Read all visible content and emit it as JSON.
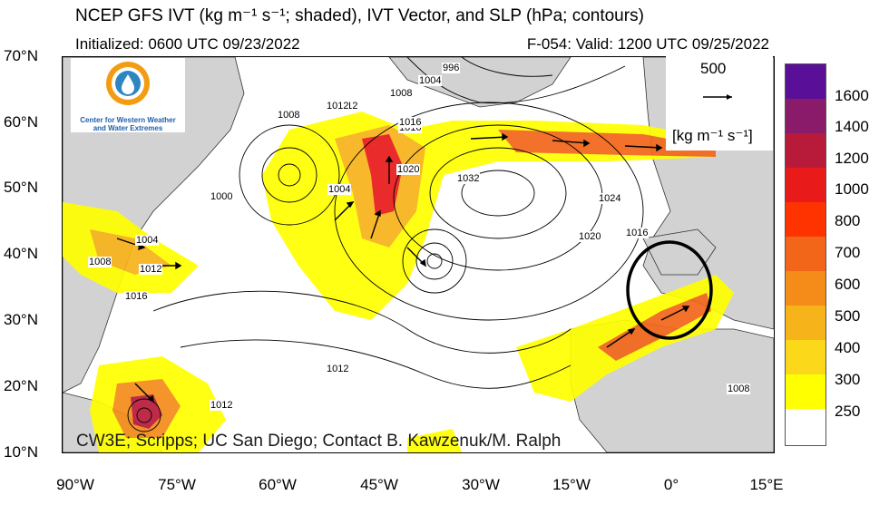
{
  "header": {
    "title": "NCEP GFS IVT (kg m⁻¹ s⁻¹; shaded), IVT Vector, and SLP (hPa; contours)",
    "initialized": "Initialized: 0600 UTC 09/23/2022",
    "valid": "F-054: Valid: 1200 UTC 09/25/2022"
  },
  "axes": {
    "lat_labels": [
      "70°N",
      "60°N",
      "50°N",
      "40°N",
      "30°N",
      "20°N",
      "10°N"
    ],
    "lon_labels": [
      "90°W",
      "75°W",
      "60°W",
      "45°W",
      "30°W",
      "15°W",
      "0°",
      "15°E"
    ],
    "lat_range": [
      10,
      70
    ],
    "lon_range": [
      -90,
      15
    ]
  },
  "colorbar": {
    "levels": [
      "1600",
      "1400",
      "1200",
      "1000",
      "800",
      "700",
      "600",
      "500",
      "400",
      "300",
      "250"
    ],
    "colors": [
      "#5a0f99",
      "#8a1a6a",
      "#b81a3a",
      "#e81a1a",
      "#ff3300",
      "#f2661a",
      "#f58c1a",
      "#f7b31a",
      "#fbd81a",
      "#ffff00",
      "#ffffff"
    ]
  },
  "reference_vector": {
    "magnitude": "500",
    "units": "[kg m⁻¹ s⁻¹]"
  },
  "logo": {
    "line1": "Center for Western Weather",
    "line2": "and Water Extremes"
  },
  "contour_labels": [
    "996",
    "1004",
    "1008",
    "1012",
    "1016",
    "1020",
    "1032",
    "1024",
    "1020",
    "1016",
    "1004",
    "1008",
    "1012",
    "1016",
    "1000",
    "1004",
    "1008",
    "1012",
    "1016",
    "1012",
    "1008",
    "1012"
  ],
  "credit": "CW3E; Scripps; UC San Diego; Contact B. Kawzenuk/M. Ralph",
  "colors": {
    "land": "#d2d2d2",
    "ocean": "#ffffff",
    "ellipse": "#000000"
  }
}
